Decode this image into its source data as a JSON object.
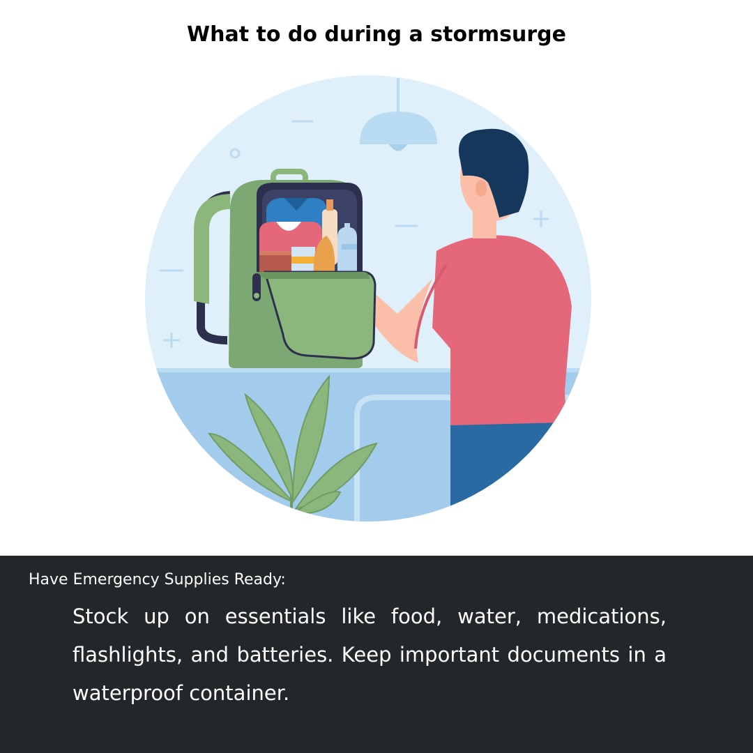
{
  "header": {
    "title": "What to do during a stormsurge"
  },
  "section": {
    "heading": "Have Emergency Supplies Ready:",
    "body": "Stock up on essentials like food, water, medications, flashlights, and batteries. Keep important documents in a waterproof container."
  },
  "colors": {
    "background": "#ffffff",
    "footer": "#242729",
    "circle": "#dff0fb",
    "counter": "#a3ccec",
    "backpack": "#7ba873",
    "shirt": "#e4677a",
    "hair": "#14375b",
    "pants": "#2a6aa3"
  },
  "icons": {
    "scene": "emergency-backpack-illustration"
  }
}
